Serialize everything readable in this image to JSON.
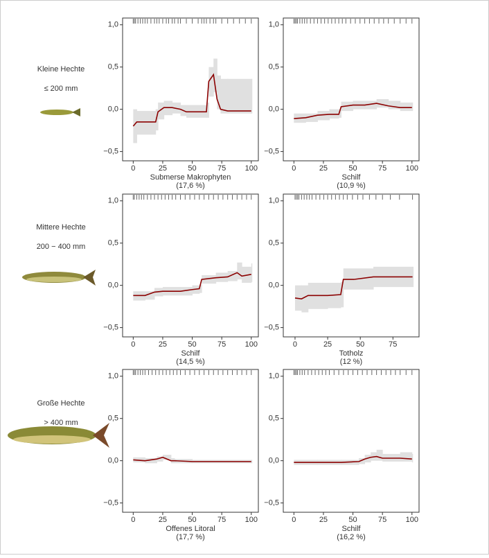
{
  "rows": [
    {
      "label": "Kleine Hechte",
      "size": "≤ 200 mm"
    },
    {
      "label": "Mittere Hechte",
      "size": "200 − 400 mm"
    },
    {
      "label": "Große Hechte",
      "size": "> 400 mm"
    }
  ],
  "chart_data": [
    {
      "type": "line",
      "xlabel": [
        "Submerse Makrophyten",
        "(17,6 %)"
      ],
      "color": "#8b0000",
      "band_color": "#e0e0e0",
      "xlim": [
        -9,
        106
      ],
      "ylim": [
        -0.61,
        1.08
      ],
      "xticks": [
        0,
        25,
        50,
        75,
        100
      ],
      "yticks": [
        {
          "value": 1,
          "label": "1,0"
        },
        {
          "value": 0.5,
          "label": "0,5"
        },
        {
          "value": 0,
          "label": "0,0"
        },
        {
          "value": -0.5,
          "label": "−0,5"
        }
      ],
      "x": [
        0,
        3,
        19,
        21,
        26,
        33,
        40,
        45,
        62,
        64,
        68,
        71,
        74,
        80,
        100
      ],
      "values": [
        -0.2,
        -0.15,
        -0.15,
        -0.03,
        0.02,
        0.02,
        0.0,
        -0.03,
        -0.03,
        0.33,
        0.41,
        0.12,
        0.0,
        -0.02,
        -0.02
      ],
      "lower": [
        -0.4,
        -0.3,
        -0.25,
        -0.12,
        -0.07,
        -0.05,
        -0.08,
        -0.1,
        -0.1,
        0.15,
        0.2,
        0.0,
        -0.05,
        -0.05,
        -0.05
      ],
      "upper": [
        0.0,
        -0.02,
        0.0,
        0.08,
        0.1,
        0.08,
        0.05,
        0.05,
        0.08,
        0.5,
        0.6,
        0.4,
        0.36,
        0.36,
        0.36
      ],
      "rug": [
        0,
        1,
        2,
        4,
        6,
        8,
        10,
        12,
        15,
        18,
        20,
        22,
        25,
        28,
        30,
        33,
        35,
        38,
        40,
        45,
        50,
        55,
        58,
        60,
        62,
        65,
        68,
        70,
        75,
        80,
        85,
        90,
        95,
        100
      ]
    },
    {
      "type": "line",
      "xlabel": [
        "Schilf",
        "(10,9 %)"
      ],
      "color": "#8b0000",
      "band_color": "#e0e0e0",
      "xlim": [
        -9,
        106
      ],
      "ylim": [
        -0.61,
        1.08
      ],
      "xticks": [
        0,
        25,
        50,
        75,
        100
      ],
      "yticks": [
        {
          "value": 1,
          "label": "1,0"
        },
        {
          "value": 0.5,
          "label": "0,5"
        },
        {
          "value": 0,
          "label": "0,0"
        },
        {
          "value": -0.5,
          "label": "−0,5"
        }
      ],
      "x": [
        0,
        10,
        20,
        30,
        38,
        40,
        50,
        60,
        70,
        80,
        90,
        100
      ],
      "values": [
        -0.11,
        -0.1,
        -0.07,
        -0.06,
        -0.06,
        0.03,
        0.05,
        0.05,
        0.07,
        0.04,
        0.02,
        0.02
      ],
      "lower": [
        -0.16,
        -0.15,
        -0.13,
        -0.11,
        -0.1,
        -0.02,
        0.0,
        0.0,
        0.02,
        0.0,
        -0.02,
        -0.02
      ],
      "upper": [
        -0.05,
        -0.05,
        -0.02,
        0.0,
        0.0,
        0.09,
        0.1,
        0.1,
        0.12,
        0.1,
        0.08,
        0.08
      ],
      "rug": [
        0,
        1,
        2,
        3,
        5,
        7,
        9,
        11,
        14,
        17,
        20,
        23,
        26,
        29,
        32,
        35,
        38,
        41,
        44,
        48,
        52,
        56,
        60,
        64,
        68,
        72,
        76,
        80,
        85,
        90,
        95,
        100
      ]
    },
    {
      "type": "line",
      "xlabel": [
        "Schilf",
        "(14,5 %)"
      ],
      "color": "#8b0000",
      "band_color": "#e0e0e0",
      "xlim": [
        -9,
        106
      ],
      "ylim": [
        -0.61,
        1.08
      ],
      "xticks": [
        0,
        25,
        50,
        75,
        100
      ],
      "yticks": [
        {
          "value": 1,
          "label": "1,0"
        },
        {
          "value": 0.5,
          "label": "0,5"
        },
        {
          "value": 0,
          "label": "0,0"
        },
        {
          "value": -0.5,
          "label": "−0,5"
        }
      ],
      "x": [
        0,
        10,
        18,
        25,
        40,
        50,
        56,
        58,
        70,
        80,
        88,
        92,
        100
      ],
      "values": [
        -0.12,
        -0.12,
        -0.08,
        -0.07,
        -0.07,
        -0.05,
        -0.04,
        0.07,
        0.09,
        0.1,
        0.15,
        0.11,
        0.13
      ],
      "lower": [
        -0.18,
        -0.17,
        -0.13,
        -0.12,
        -0.12,
        -0.1,
        -0.09,
        0.02,
        0.04,
        0.05,
        0.07,
        0.03,
        0.04
      ],
      "upper": [
        -0.07,
        -0.07,
        -0.03,
        -0.02,
        -0.02,
        0.0,
        0.01,
        0.12,
        0.15,
        0.17,
        0.27,
        0.22,
        0.26
      ],
      "rug": [
        0,
        1,
        3,
        5,
        7,
        9,
        12,
        15,
        18,
        21,
        24,
        27,
        30,
        33,
        36,
        40,
        44,
        48,
        52,
        56,
        60,
        64,
        68,
        72,
        76,
        80,
        84,
        88,
        92,
        96,
        100
      ]
    },
    {
      "type": "line",
      "xlabel": [
        "Totholz",
        "(12 %)"
      ],
      "color": "#8b0000",
      "band_color": "#e0e0e0",
      "xlim": [
        -9,
        95
      ],
      "ylim": [
        -0.61,
        1.08
      ],
      "xticks": [
        0,
        25,
        50,
        75
      ],
      "yticks": [
        {
          "value": 1,
          "label": "1,0"
        },
        {
          "value": 0.5,
          "label": "0,5"
        },
        {
          "value": 0,
          "label": "0,0"
        },
        {
          "value": -0.5,
          "label": "−0,5"
        }
      ],
      "x": [
        0,
        5,
        10,
        25,
        35,
        37,
        45,
        60,
        75,
        90
      ],
      "values": [
        -0.15,
        -0.16,
        -0.12,
        -0.12,
        -0.11,
        0.07,
        0.07,
        0.1,
        0.1,
        0.1
      ],
      "lower": [
        -0.3,
        -0.32,
        -0.28,
        -0.27,
        -0.26,
        -0.05,
        -0.05,
        -0.02,
        -0.02,
        -0.02
      ],
      "upper": [
        0.0,
        0.0,
        0.03,
        0.03,
        0.04,
        0.2,
        0.2,
        0.22,
        0.22,
        0.22
      ],
      "rug": [
        0,
        1,
        2,
        3,
        5,
        7,
        9,
        11,
        13,
        16,
        19,
        22,
        25,
        28,
        31,
        34,
        37,
        40,
        44,
        48,
        52,
        57,
        62,
        67,
        73,
        80,
        90
      ]
    },
    {
      "type": "line",
      "xlabel": [
        "Offenes Litoral",
        "(17,7 %)"
      ],
      "color": "#8b0000",
      "band_color": "#e0e0e0",
      "xlim": [
        -9,
        106
      ],
      "ylim": [
        -0.61,
        1.08
      ],
      "xticks": [
        0,
        25,
        50,
        75,
        100
      ],
      "yticks": [
        {
          "value": 1,
          "label": "1,0"
        },
        {
          "value": 0.5,
          "label": "0,5"
        },
        {
          "value": 0,
          "label": "0,0"
        },
        {
          "value": -0.5,
          "label": "−0,5"
        }
      ],
      "x": [
        0,
        10,
        20,
        25,
        32,
        35,
        50,
        75,
        100
      ],
      "values": [
        0.01,
        0.0,
        0.02,
        0.04,
        0.0,
        0.0,
        -0.01,
        -0.01,
        -0.01
      ],
      "lower": [
        -0.02,
        -0.03,
        -0.01,
        0.01,
        -0.03,
        -0.03,
        -0.03,
        -0.03,
        -0.03
      ],
      "upper": [
        0.04,
        0.03,
        0.05,
        0.07,
        0.03,
        0.02,
        0.01,
        0.01,
        0.01
      ],
      "rug": [
        0,
        1,
        2,
        4,
        6,
        8,
        10,
        13,
        16,
        19,
        22,
        25,
        28,
        31,
        34,
        37,
        40,
        44,
        48,
        52,
        56,
        60,
        64,
        68,
        72,
        76,
        80,
        84,
        88,
        92,
        96,
        100
      ]
    },
    {
      "type": "line",
      "xlabel": [
        "Schilf",
        "(16,2 %)"
      ],
      "color": "#8b0000",
      "band_color": "#e0e0e0",
      "xlim": [
        -9,
        106
      ],
      "ylim": [
        -0.61,
        1.08
      ],
      "xticks": [
        0,
        25,
        50,
        75,
        100
      ],
      "yticks": [
        {
          "value": 1,
          "label": "1,0"
        },
        {
          "value": 0.5,
          "label": "0,5"
        },
        {
          "value": 0,
          "label": "0,0"
        },
        {
          "value": -0.5,
          "label": "−0,5"
        }
      ],
      "x": [
        0,
        20,
        40,
        55,
        60,
        65,
        70,
        75,
        90,
        100
      ],
      "values": [
        -0.02,
        -0.02,
        -0.02,
        -0.01,
        0.02,
        0.04,
        0.05,
        0.03,
        0.03,
        0.02
      ],
      "lower": [
        -0.05,
        -0.05,
        -0.05,
        -0.04,
        -0.02,
        0.0,
        0.0,
        -0.01,
        -0.01,
        -0.02
      ],
      "upper": [
        0.01,
        0.01,
        0.01,
        0.03,
        0.07,
        0.1,
        0.13,
        0.08,
        0.1,
        0.08
      ],
      "rug": [
        0,
        1,
        2,
        3,
        5,
        7,
        9,
        12,
        15,
        18,
        21,
        24,
        27,
        30,
        34,
        38,
        42,
        46,
        50,
        54,
        58,
        62,
        66,
        70,
        74,
        78,
        82,
        86,
        90,
        95,
        100
      ]
    }
  ]
}
